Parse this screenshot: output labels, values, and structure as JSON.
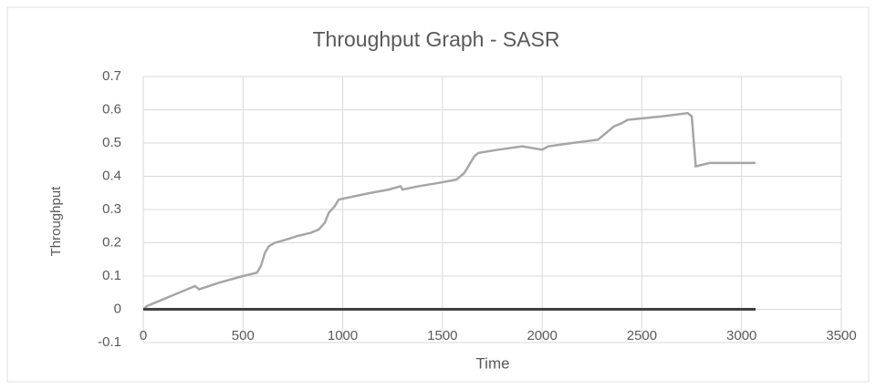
{
  "chart_data": {
    "type": "line",
    "title": "Throughput Graph - SASR",
    "x_label": "Time",
    "y_label": "Throughput",
    "xlim": [
      0,
      3500
    ],
    "xticks": [
      0,
      500,
      1000,
      1500,
      2000,
      2500,
      3000,
      3500
    ],
    "ylim": [
      -0.1,
      0.7
    ],
    "yticks": [
      -0.1,
      0,
      0.1,
      0.2,
      0.3,
      0.4,
      0.5,
      0.6,
      0.7
    ],
    "grid": true,
    "series": [
      {
        "color": "#a6a6a6",
        "x": [
          0,
          20,
          60,
          100,
          140,
          180,
          220,
          260,
          280,
          330,
          380,
          440,
          500,
          570,
          590,
          610,
          630,
          660,
          720,
          770,
          840,
          880,
          910,
          930,
          960,
          980,
          1060,
          1140,
          1230,
          1290,
          1300,
          1380,
          1480,
          1570,
          1610,
          1640,
          1660,
          1680,
          1780,
          1900,
          2000,
          2030,
          2150,
          2280,
          2320,
          2360,
          2400,
          2430,
          2600,
          2730,
          2750,
          2770,
          2840,
          3070
        ],
        "values": [
          0,
          0.01,
          0.02,
          0.03,
          0.04,
          0.05,
          0.06,
          0.07,
          0.06,
          0.07,
          0.08,
          0.09,
          0.1,
          0.11,
          0.13,
          0.17,
          0.19,
          0.2,
          0.21,
          0.22,
          0.23,
          0.24,
          0.26,
          0.29,
          0.31,
          0.33,
          0.34,
          0.35,
          0.36,
          0.37,
          0.36,
          0.37,
          0.38,
          0.39,
          0.41,
          0.44,
          0.46,
          0.47,
          0.48,
          0.49,
          0.48,
          0.49,
          0.5,
          0.51,
          0.53,
          0.55,
          0.56,
          0.57,
          0.58,
          0.59,
          0.58,
          0.43,
          0.44,
          0.44
        ]
      },
      {
        "color": "#404040",
        "x": [
          0,
          3070
        ],
        "values": [
          0,
          0
        ]
      }
    ]
  }
}
